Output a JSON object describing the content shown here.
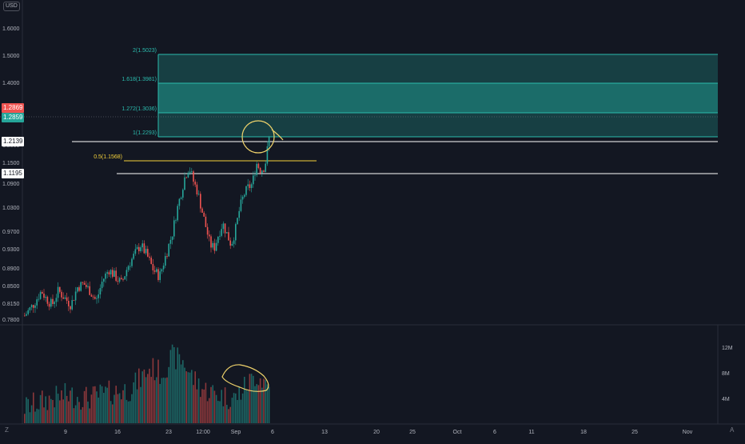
{
  "scale_label": "USD",
  "corner_right": "A",
  "corner_left": "Z",
  "colors": {
    "background": "#131722",
    "up": "#26a69a",
    "down": "#ef5350",
    "fib_zone": "#1f8a82",
    "support_line": "#ffffff",
    "fib_half_line": "#f5d23b",
    "circle_annotation": "#f0d36b",
    "price_tag_current": "#ef5350",
    "price_tag_prev": "#26a69a"
  },
  "price_axis_labels": [
    "1.6000",
    "1.5000",
    "1.4000",
    "1.3000",
    "1.2000",
    "1.1500",
    "1.0900",
    "1.0300",
    "0.9700",
    "0.9300",
    "0.8900",
    "0.8500",
    "0.8150",
    "0.7800"
  ],
  "price_tags": {
    "current": "1.2869",
    "previous": "1.2859",
    "level_upper": "1.2139",
    "level_lower": "1.1195"
  },
  "volume_axis_labels": [
    "12M",
    "8M",
    "4M"
  ],
  "time_axis_labels": [
    "9",
    "16",
    "23",
    "12:00",
    "Sep",
    "6",
    "13",
    "20",
    "25",
    "Oct",
    "6",
    "11",
    "18",
    "25",
    "Nov"
  ],
  "fib_labels": {
    "f2": "2(1.5023)",
    "f1618": "1.618(1.3981)",
    "f1272": "1.272(1.3036)",
    "f1": "1(1.2293)",
    "f05": "0.5(1.1568)"
  },
  "chart_data": {
    "type": "candlestick",
    "x_start": "2021-08-02",
    "x_end": "2021-11-05",
    "ylim": [
      0.77,
      1.62
    ],
    "volume_max": "12M",
    "fib_levels": [
      {
        "label": "2",
        "value": 1.5023
      },
      {
        "label": "1.618",
        "value": 1.3981
      },
      {
        "label": "1.272",
        "value": 1.3036
      },
      {
        "label": "1",
        "value": 1.2293
      },
      {
        "label": "0.5",
        "value": 1.1568
      }
    ],
    "support_levels": [
      1.2139,
      1.1195
    ],
    "last_price": 1.2869,
    "previous_close": 1.2859,
    "close_path": [
      [
        0.0,
        0.79
      ],
      [
        0.04,
        0.82
      ],
      [
        0.08,
        0.86
      ],
      [
        0.1,
        0.84
      ],
      [
        0.13,
        0.82
      ],
      [
        0.16,
        0.86
      ],
      [
        0.19,
        0.84
      ],
      [
        0.22,
        0.82
      ],
      [
        0.25,
        0.87
      ],
      [
        0.28,
        0.88
      ],
      [
        0.31,
        0.86
      ],
      [
        0.34,
        0.83
      ],
      [
        0.37,
        0.89
      ],
      [
        0.4,
        0.92
      ],
      [
        0.43,
        0.9
      ],
      [
        0.46,
        0.88
      ],
      [
        0.49,
        0.93
      ],
      [
        0.52,
        0.96
      ],
      [
        0.55,
        0.99
      ],
      [
        0.58,
        0.96
      ],
      [
        0.61,
        0.92
      ],
      [
        0.64,
        0.9
      ],
      [
        0.67,
        0.96
      ],
      [
        0.7,
        1.02
      ],
      [
        0.72,
        1.08
      ],
      [
        0.74,
        1.13
      ],
      [
        0.76,
        1.18
      ],
      [
        0.78,
        1.21
      ],
      [
        0.8,
        1.17
      ],
      [
        0.82,
        1.14
      ],
      [
        0.84,
        1.09
      ],
      [
        0.86,
        1.04
      ],
      [
        0.88,
        0.99
      ],
      [
        0.9,
        0.98
      ],
      [
        0.92,
        1.02
      ],
      [
        0.94,
        1.05
      ],
      [
        0.96,
        1.02
      ],
      [
        0.98,
        0.99
      ],
      [
        1.0,
        1.03
      ],
      [
        1.02,
        1.09
      ],
      [
        1.04,
        1.13
      ],
      [
        1.06,
        1.15
      ],
      [
        1.08,
        1.16
      ],
      [
        1.1,
        1.22
      ],
      [
        1.12,
        1.2
      ],
      [
        1.14,
        1.21
      ],
      [
        1.16,
        1.29
      ]
    ],
    "volume_path": [
      [
        0.0,
        0.15
      ],
      [
        0.1,
        0.25
      ],
      [
        0.2,
        0.32
      ],
      [
        0.3,
        0.28
      ],
      [
        0.4,
        0.35
      ],
      [
        0.5,
        0.4
      ],
      [
        0.55,
        0.55
      ],
      [
        0.6,
        0.7
      ],
      [
        0.65,
        0.62
      ],
      [
        0.7,
        0.85
      ],
      [
        0.75,
        0.8
      ],
      [
        0.8,
        0.55
      ],
      [
        0.85,
        0.4
      ],
      [
        0.9,
        0.35
      ],
      [
        0.95,
        0.3
      ],
      [
        1.0,
        0.28
      ],
      [
        1.05,
        0.45
      ],
      [
        1.1,
        0.6
      ],
      [
        1.15,
        0.48
      ],
      [
        1.16,
        0.42
      ]
    ]
  }
}
